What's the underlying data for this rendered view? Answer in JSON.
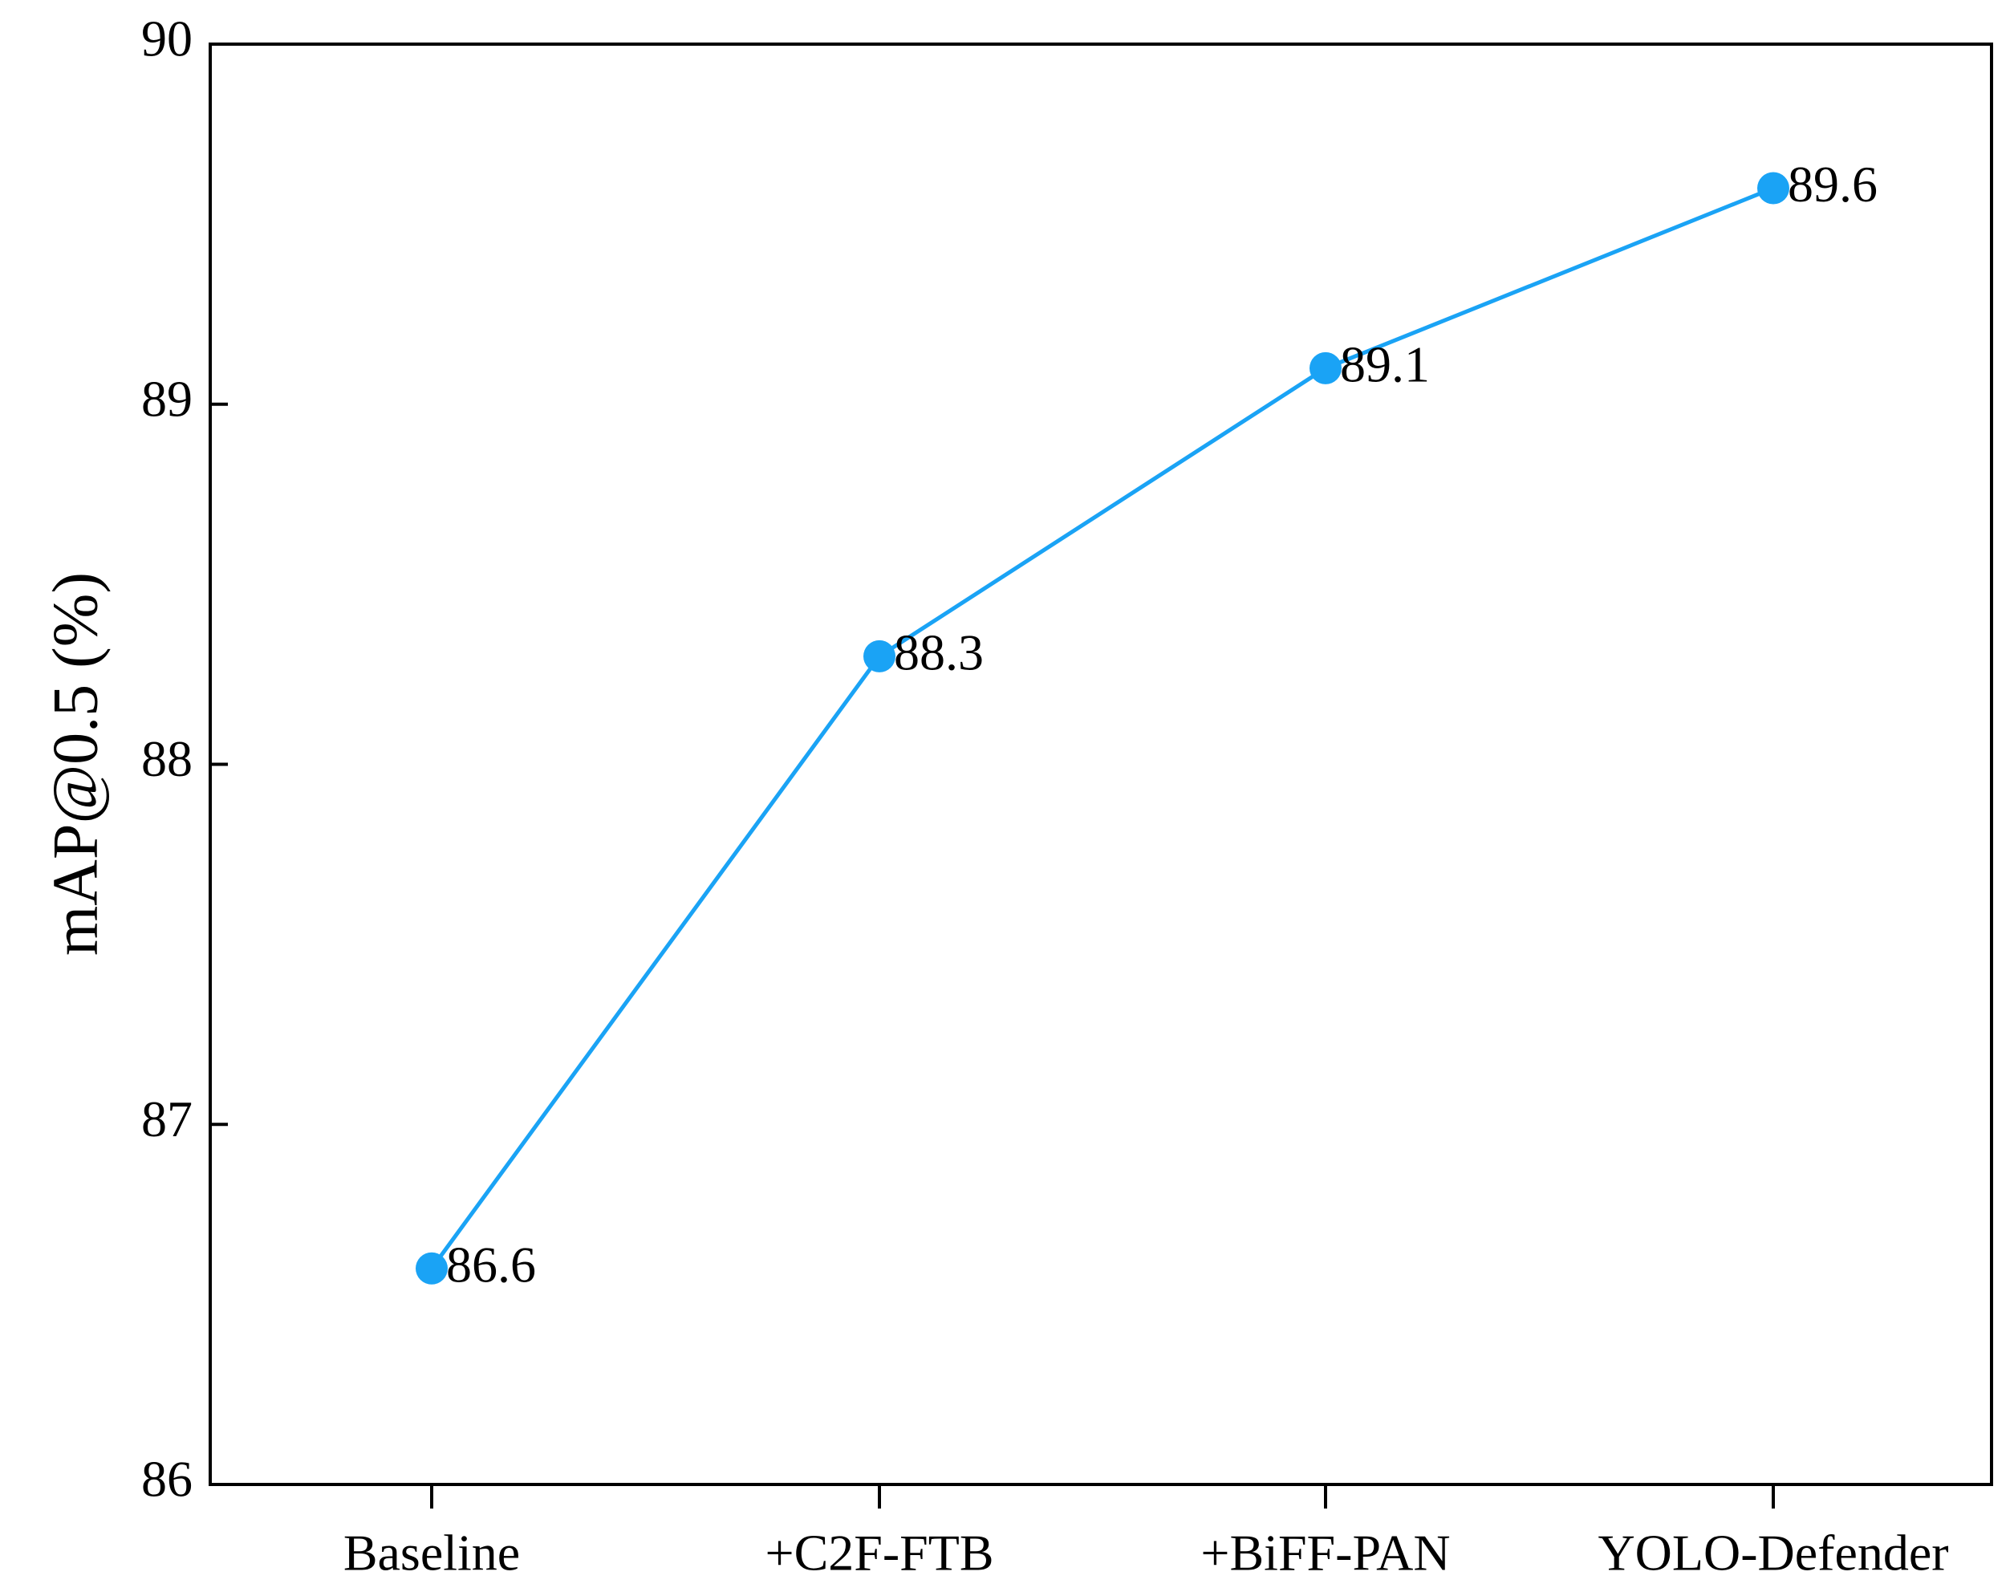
{
  "chart_data": {
    "type": "line",
    "categories": [
      "Baseline",
      "+C2F-FTB",
      "+BiFF-PAN",
      "YOLO-Defender"
    ],
    "series": [
      {
        "values": [
          86.6,
          88.3,
          89.1,
          89.6
        ],
        "color": "#1aa3f5"
      }
    ],
    "data_labels": [
      "86.6",
      "88.3",
      "89.1",
      "89.6"
    ],
    "title": "",
    "xlabel": "",
    "ylabel": "mAP@0.5 (%)",
    "ylim": [
      86,
      90
    ],
    "yticks": [
      86,
      87,
      88,
      89,
      90
    ],
    "ytick_labels": [
      "86",
      "87",
      "88",
      "89",
      "90"
    ],
    "grid": false,
    "legend": false,
    "axis_color": "#000000"
  }
}
